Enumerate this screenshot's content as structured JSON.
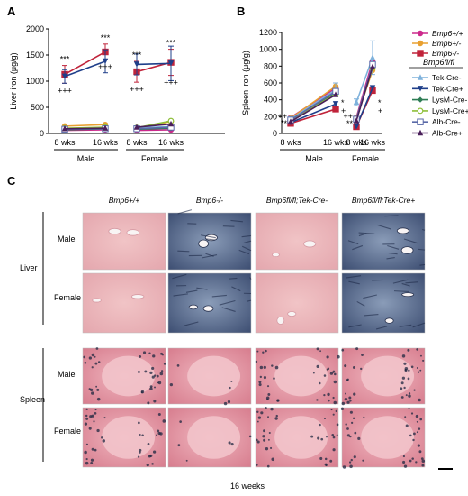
{
  "panels": {
    "a": "A",
    "b": "B",
    "c": "C"
  },
  "chart_data": [
    {
      "type": "line",
      "panel": "A",
      "ylabel": "Liver iron (μg/g)",
      "ylim": [
        0,
        2000
      ],
      "yticks": [
        "0",
        "500",
        "1000",
        "1500",
        "2000"
      ],
      "x_ticks": [
        "8 wks",
        "16 wks",
        "8 wks",
        "16 wks"
      ],
      "groups": [
        "Male",
        "Female"
      ],
      "series": [
        {
          "name": "Bmp6+/+",
          "color": "#cc2a8c",
          "marker": "circle",
          "values": [
            60,
            70,
            60,
            70
          ]
        },
        {
          "name": "Bmp6+/-",
          "color": "#e8a030",
          "marker": "circle",
          "values": [
            140,
            170,
            100,
            230
          ]
        },
        {
          "name": "Bmp6-/-",
          "color": "#c0233a",
          "marker": "square",
          "values": [
            1130,
            1560,
            1180,
            1360
          ],
          "err": [
            170,
            150,
            200,
            250
          ]
        },
        {
          "name": "Tek-Cre-",
          "color": "#7fb2dc",
          "marker": "triangle",
          "values": [
            90,
            110,
            110,
            130
          ]
        },
        {
          "name": "Tek-Cre+",
          "color": "#1f3f8a",
          "marker": "triangle-down",
          "values": [
            1090,
            1380,
            1320,
            1340
          ],
          "err": [
            130,
            220,
            200,
            330
          ]
        },
        {
          "name": "LysM-Cre-",
          "color": "#2e7d55",
          "marker": "diamond",
          "values": [
            70,
            90,
            80,
            100
          ]
        },
        {
          "name": "LysM-Cre+",
          "color": "#8fbf3a",
          "marker": "circle-open",
          "values": [
            100,
            120,
            110,
            240
          ]
        },
        {
          "name": "Alb-Cre-",
          "color": "#5a6aa8",
          "marker": "square-open",
          "values": [
            80,
            90,
            90,
            120
          ]
        },
        {
          "name": "Alb-Cre+",
          "color": "#4a1f5a",
          "marker": "triangle",
          "values": [
            90,
            100,
            120,
            180
          ]
        }
      ],
      "annotations": [
        {
          "text": "***",
          "at": 0
        },
        {
          "text": "+++",
          "at": 0
        },
        {
          "text": "***",
          "at": 1
        },
        {
          "text": "+++",
          "at": 1
        },
        {
          "text": "***",
          "at": 2
        },
        {
          "text": "+++",
          "at": 2
        },
        {
          "text": "***",
          "at": 3
        },
        {
          "text": "+++",
          "at": 3
        }
      ]
    },
    {
      "type": "line",
      "panel": "B",
      "ylabel": "Spleen iron (μg/g)",
      "ylim": [
        0,
        1200
      ],
      "yticks": [
        "0",
        "200",
        "400",
        "600",
        "800",
        "1000",
        "1200"
      ],
      "x_ticks": [
        "8 wks",
        "16 wks",
        "8 wks",
        "16 wks"
      ],
      "groups": [
        "Male",
        "Female"
      ],
      "series": [
        {
          "name": "Bmp6+/+",
          "color": "#cc2a8c",
          "values": [
            190,
            540,
            190,
            860
          ]
        },
        {
          "name": "Bmp6+/-",
          "color": "#e8a030",
          "values": [
            180,
            560,
            180,
            750
          ]
        },
        {
          "name": "Bmp6-/-",
          "color": "#c0233a",
          "values": [
            120,
            290,
            80,
            510
          ]
        },
        {
          "name": "Tek-Cre-",
          "color": "#7fb2dc",
          "values": [
            170,
            520,
            370,
            900
          ],
          "err": [
            30,
            80,
            40,
            200
          ]
        },
        {
          "name": "Tek-Cre+",
          "color": "#1f3f8a",
          "values": [
            130,
            350,
            80,
            540
          ]
        },
        {
          "name": "LysM-Cre-",
          "color": "#2e7d55",
          "values": [
            160,
            480,
            170,
            800
          ]
        },
        {
          "name": "LysM-Cre+",
          "color": "#8fbf3a",
          "values": [
            150,
            470,
            160,
            780
          ]
        },
        {
          "name": "Alb-Cre-",
          "color": "#5a6aa8",
          "values": [
            160,
            500,
            170,
            820
          ]
        },
        {
          "name": "Alb-Cre+",
          "color": "#4a1f5a",
          "values": [
            140,
            460,
            150,
            790
          ]
        }
      ],
      "annotations": [
        {
          "text": "++",
          "at": 0
        },
        {
          "text": "**",
          "at": 0
        },
        {
          "text": "*",
          "at": 1
        },
        {
          "text": "+",
          "at": 1
        },
        {
          "text": "++",
          "at": 2
        },
        {
          "text": "**",
          "at": 2
        },
        {
          "text": "*",
          "at": 3
        },
        {
          "text": "+",
          "at": 3
        }
      ]
    }
  ],
  "legend": {
    "top": [
      "Bmp6+/+",
      "Bmp6+/-",
      "Bmp6-/-"
    ],
    "header": "Bmp6fl/fl",
    "bottom": [
      "Tek-Cre-",
      "Tek-Cre+",
      "LysM-Cre-",
      "LysM-Cre+",
      "Alb-Cre-",
      "Alb-Cre+"
    ]
  },
  "histology": {
    "columns": [
      "Bmp6+/+",
      "Bmp6-/-",
      "Bmp6fl/fl;Tek-Cre-",
      "Bmp6fl/fl;Tek-Cre+"
    ],
    "organs": [
      "Liver",
      "Spleen"
    ],
    "sexes": [
      "Male",
      "Female"
    ],
    "caption": "16 weeks"
  }
}
